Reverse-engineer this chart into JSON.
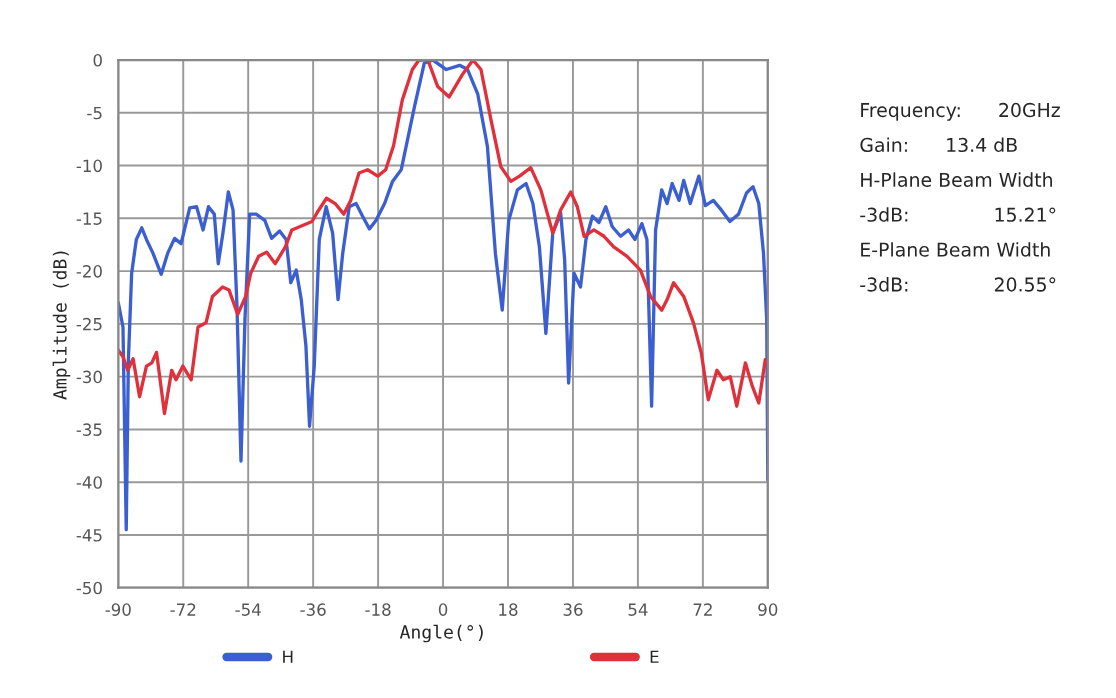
{
  "chart_data": {
    "type": "line",
    "xlabel": "Angle(°)",
    "ylabel": "Amplitude (dB)",
    "xlim": [
      -90,
      90
    ],
    "ylim": [
      -50,
      0
    ],
    "xticks": [
      -90,
      -72,
      -54,
      -36,
      -18,
      0,
      18,
      36,
      54,
      72,
      90
    ],
    "yticks": [
      -50,
      -45,
      -40,
      -35,
      -30,
      -25,
      -20,
      -15,
      -10,
      -5,
      0
    ],
    "grid": true,
    "legend": "bottom",
    "marker": "none",
    "line_style": "solid",
    "series": [
      {
        "name": "H",
        "color": "#3b5fd0",
        "x": [
          -90,
          -88.7,
          -87.8,
          -87.2,
          -86.3,
          -85,
          -83.5,
          -82.2,
          -80.4,
          -78.1,
          -76.3,
          -74.4,
          -72.6,
          -70.2,
          -68.3,
          -66.5,
          -65,
          -63.4,
          -62.3,
          -61,
          -59.5,
          -58.2,
          -57.1,
          -56,
          -54.9,
          -53.6,
          -51.8,
          -49.4,
          -47.5,
          -45.3,
          -43.5,
          -42.2,
          -40.7,
          -39.3,
          -38,
          -37,
          -35.7,
          -34.3,
          -32.4,
          -30.6,
          -29.1,
          -27.8,
          -26,
          -24.1,
          -22.3,
          -20.4,
          -18.6,
          -16.2,
          -14,
          -11.6,
          -7.9,
          -5.2,
          -2.8,
          0.9,
          4.6,
          6.8,
          9.6,
          12.3,
          14.5,
          16.4,
          18.2,
          20.6,
          23,
          24.9,
          26.7,
          28.5,
          30.4,
          32.6,
          33.7,
          34.8,
          36.3,
          38.1,
          39.6,
          41.4,
          43.2,
          45.1,
          46.9,
          49.2,
          51.4,
          53.2,
          55.1,
          56.5,
          57.8,
          58.9,
          60.6,
          62.1,
          63.5,
          65.4,
          66.7,
          68.5,
          70.9,
          72.7,
          74.9,
          77.1,
          79.5,
          81.9,
          84.1,
          85.9,
          87.5,
          88.8,
          89.7,
          90
        ],
        "values": [
          -23,
          -25.3,
          -44.5,
          -28.4,
          -20.2,
          -17,
          -15.9,
          -17,
          -18.3,
          -20.3,
          -18.3,
          -16.9,
          -17.4,
          -14,
          -13.9,
          -16.1,
          -13.9,
          -14.6,
          -19.3,
          -16.4,
          -12.5,
          -14.2,
          -23.4,
          -38,
          -24.6,
          -14.6,
          -14.6,
          -15.2,
          -16.9,
          -16.2,
          -17,
          -21.1,
          -19.9,
          -22.7,
          -27.1,
          -34.7,
          -29,
          -17,
          -13.9,
          -16.4,
          -22.7,
          -18.3,
          -13.9,
          -13.6,
          -14.8,
          -16,
          -15.2,
          -13.6,
          -11.5,
          -10.4,
          -4.4,
          -0.3,
          0,
          -0.9,
          -0.5,
          -0.9,
          -3.2,
          -8.2,
          -18.3,
          -23.7,
          -15.2,
          -12.3,
          -11.7,
          -13.6,
          -17.7,
          -25.9,
          -16.4,
          -14.5,
          -18.9,
          -30.6,
          -20.2,
          -21.5,
          -17,
          -14.8,
          -15.4,
          -13.9,
          -15.8,
          -16.7,
          -16.1,
          -17,
          -15.5,
          -17,
          -32.8,
          -16.1,
          -12.3,
          -13.6,
          -11.7,
          -13.3,
          -11.4,
          -13.6,
          -11,
          -13.8,
          -13.3,
          -14.2,
          -15.3,
          -14.6,
          -12.6,
          -12,
          -13.6,
          -18.3,
          -24.6,
          -39.8
        ]
      },
      {
        "name": "E",
        "color": "#e0303c",
        "x": [
          -90,
          -88.7,
          -87.4,
          -85.9,
          -84.1,
          -82.2,
          -80.7,
          -79.4,
          -77.2,
          -75.2,
          -74,
          -72.1,
          -69.8,
          -67.9,
          -65.7,
          -63.9,
          -61.1,
          -59.3,
          -56.9,
          -54.7,
          -53.3,
          -51.1,
          -48.9,
          -46.5,
          -43.7,
          -41.9,
          -39.1,
          -36.3,
          -34.8,
          -32.3,
          -29.9,
          -27.5,
          -25.6,
          -23.3,
          -20.9,
          -18.1,
          -15.9,
          -13.7,
          -11.3,
          -8.5,
          -6.7,
          -4.2,
          -1.5,
          1.7,
          5.3,
          8.3,
          10.5,
          13.3,
          16,
          18.8,
          21.2,
          24.3,
          27.1,
          30.4,
          32.6,
          35.4,
          37.2,
          39.1,
          41.8,
          44.6,
          47.3,
          51,
          54.7,
          57.5,
          60.6,
          62.1,
          63.9,
          66.7,
          69.4,
          71.6,
          73.5,
          75.9,
          77.7,
          79.6,
          81.4,
          83.8,
          85.7,
          87.5,
          89.3,
          90
        ],
        "values": [
          -27.5,
          -28.1,
          -29.4,
          -28.3,
          -31.9,
          -29,
          -28.7,
          -27.7,
          -33.5,
          -29.4,
          -30.3,
          -29,
          -30.3,
          -25.3,
          -24.9,
          -22.4,
          -21.5,
          -21.8,
          -24.1,
          -22.4,
          -20.2,
          -18.6,
          -18.2,
          -19.3,
          -17.7,
          -16.1,
          -15.7,
          -15.3,
          -14.4,
          -13.1,
          -13.6,
          -14.6,
          -13.3,
          -10.7,
          -10.4,
          -11,
          -10.4,
          -8.1,
          -3.8,
          -0.9,
          0,
          0,
          -2.5,
          -3.5,
          -1.4,
          0,
          -0.9,
          -5.7,
          -10.1,
          -11.5,
          -11,
          -10.2,
          -12.3,
          -16.4,
          -14.2,
          -12.5,
          -13.9,
          -16.7,
          -16.1,
          -16.7,
          -17.7,
          -18.6,
          -19.9,
          -22.4,
          -23.7,
          -22.7,
          -21.1,
          -22.4,
          -24.9,
          -27.8,
          -32.2,
          -29.4,
          -30.3,
          -30,
          -32.8,
          -28.7,
          -30.9,
          -32.5,
          -28.4,
          -28.7
        ]
      }
    ],
    "annotations": [
      "Frequency:      20GHz",
      "Gain:      13.4 dB",
      "H-Plane Beam Width",
      "-3dB:              15.21°",
      "E-Plane Beam Width",
      "-3dB:              20.55°"
    ]
  }
}
